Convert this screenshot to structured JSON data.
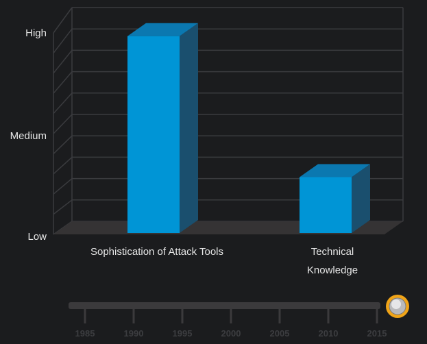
{
  "chart_data": {
    "type": "bar",
    "bar_style": "3d",
    "title": "",
    "xlabel": "",
    "ylabel": "",
    "categories": [
      [
        "Sophistication of Attack Tools"
      ],
      [
        "Technical",
        "Knowledge"
      ]
    ],
    "values": [
      0.95,
      0.25
    ],
    "ylim": [
      0,
      1
    ],
    "yticks": [
      {
        "value": 0,
        "label": "Low"
      },
      {
        "value": 0.5,
        "label": "Medium"
      },
      {
        "value": 1,
        "label": "High"
      }
    ],
    "grid": true,
    "bar_color": "#0095d6",
    "bar_side_color": "#1a4f6e",
    "bar_top_color": "#0b78b0"
  },
  "timeline": {
    "years": [
      "1985",
      "1990",
      "1995",
      "2000",
      "2005",
      "2010",
      "2015"
    ],
    "selected": "2015",
    "selected_fraction": 1.0,
    "knob_ring_color": "#f0a418"
  }
}
